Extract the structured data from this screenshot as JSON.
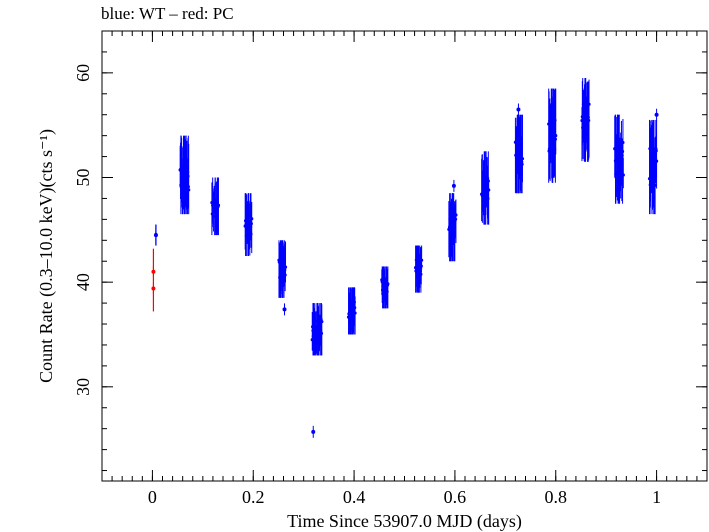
{
  "title": "blue: WT – red: PC",
  "chart_data": {
    "type": "scatter",
    "title": "blue: WT – red: PC",
    "xlabel": "Time Since 53907.0 MJD (days)",
    "ylabel": "Count Rate (0.3–10.0 keV)(cts s⁻¹)",
    "xlim": [
      -0.1,
      1.1
    ],
    "ylim": [
      21,
      64
    ],
    "xticks": [
      0,
      0.2,
      0.4,
      0.6,
      0.8,
      1
    ],
    "xtick_labels": [
      "0",
      "0.2",
      "0.4",
      "0.6",
      "0.8",
      "1"
    ],
    "yticks": [
      30,
      40,
      50,
      60
    ],
    "ytick_labels": [
      "30",
      "40",
      "50",
      "60"
    ],
    "grid": false,
    "series": [
      {
        "name": "WT",
        "color": "#0000ff",
        "segments": [
          {
            "x": [
              0.007,
              0.007
            ],
            "y": [
              43.5,
              45.5
            ]
          },
          {
            "x": [
              0.055,
              0.072
            ],
            "y": [
              46.5,
              54
            ]
          },
          {
            "x": [
              0.118,
              0.131
            ],
            "y": [
              44.5,
              50
            ]
          },
          {
            "x": [
              0.184,
              0.197
            ],
            "y": [
              42.5,
              48.5
            ]
          },
          {
            "x": [
              0.251,
              0.264
            ],
            "y": [
              38.5,
              44
            ]
          },
          {
            "x": [
              0.317,
              0.336
            ],
            "y": [
              33,
              38
            ]
          },
          {
            "x": [
              0.389,
              0.402
            ],
            "y": [
              35,
              39.5
            ]
          },
          {
            "x": [
              0.455,
              0.467
            ],
            "y": [
              37.5,
              41.5
            ]
          },
          {
            "x": [
              0.522,
              0.534
            ],
            "y": [
              39,
              43.5
            ]
          },
          {
            "x": [
              0.588,
              0.602
            ],
            "y": [
              42,
              48.5
            ]
          },
          {
            "x": [
              0.653,
              0.667
            ],
            "y": [
              45.5,
              52.5
            ]
          },
          {
            "x": [
              0.72,
              0.734
            ],
            "y": [
              48.5,
              56
            ]
          },
          {
            "x": [
              0.786,
              0.8
            ],
            "y": [
              49.5,
              58.5
            ]
          },
          {
            "x": [
              0.852,
              0.866
            ],
            "y": [
              51.5,
              59.5
            ]
          },
          {
            "x": [
              0.917,
              0.934
            ],
            "y": [
              47.5,
              56
            ]
          },
          {
            "x": [
              0.986,
              1.0
            ],
            "y": [
              46.5,
              55.5
            ]
          }
        ],
        "points": [
          {
            "x": 0.007,
            "y": 44.5
          },
          {
            "x": 0.262,
            "y": 37.4
          },
          {
            "x": 0.319,
            "y": 25.7
          },
          {
            "x": 0.598,
            "y": 49.2
          },
          {
            "x": 0.726,
            "y": 56.5
          },
          {
            "x": 0.857,
            "y": 58.2
          },
          {
            "x": 1.0,
            "y": 56.0
          }
        ]
      },
      {
        "name": "PC",
        "color": "#ff0000",
        "points": [
          {
            "x": 0.002,
            "y": 41.0
          },
          {
            "x": 0.002,
            "y": 39.4
          }
        ]
      }
    ]
  }
}
